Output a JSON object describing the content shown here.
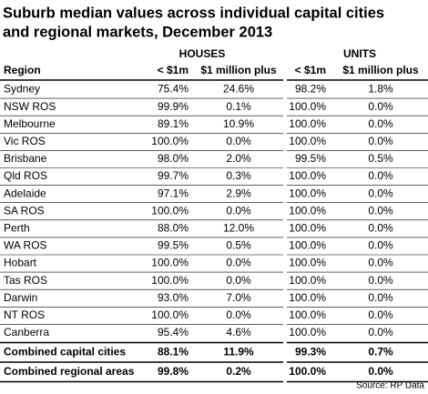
{
  "title": [
    "Suburb median values across individual capital cities",
    "and regional markets, December 2013"
  ],
  "table": {
    "groups": [
      "HOUSES",
      "UNITS"
    ],
    "columns": [
      "Region",
      "< $1m",
      "$1 million plus",
      "< $1m",
      "$1 million plus"
    ],
    "rows": [
      [
        "Sydney",
        "75.4%",
        "24.6%",
        "98.2%",
        "1.8%"
      ],
      [
        "NSW ROS",
        "99.9%",
        "0.1%",
        "100.0%",
        "0.0%"
      ],
      [
        "Melbourne",
        "89.1%",
        "10.9%",
        "100.0%",
        "0.0%"
      ],
      [
        "Vic ROS",
        "100.0%",
        "0.0%",
        "100.0%",
        "0.0%"
      ],
      [
        "Brisbane",
        "98.0%",
        "2.0%",
        "99.5%",
        "0.5%"
      ],
      [
        "Qld ROS",
        "99.7%",
        "0.3%",
        "100.0%",
        "0.0%"
      ],
      [
        "Adelaide",
        "97.1%",
        "2.9%",
        "100.0%",
        "0.0%"
      ],
      [
        "SA ROS",
        "100.0%",
        "0.0%",
        "100.0%",
        "0.0%"
      ],
      [
        "Perth",
        "88.0%",
        "12.0%",
        "100.0%",
        "0.0%"
      ],
      [
        "WA ROS",
        "99.5%",
        "0.5%",
        "100.0%",
        "0.0%"
      ],
      [
        "Hobart",
        "100.0%",
        "0.0%",
        "100.0%",
        "0.0%"
      ],
      [
        "Tas ROS",
        "100.0%",
        "0.0%",
        "100.0%",
        "0.0%"
      ],
      [
        "Darwin",
        "93.0%",
        "7.0%",
        "100.0%",
        "0.0%"
      ],
      [
        "NT ROS",
        "100.0%",
        "0.0%",
        "100.0%",
        "0.0%"
      ],
      [
        "Canberra",
        "95.4%",
        "4.6%",
        "100.0%",
        "0.0%"
      ]
    ],
    "totals": [
      [
        "Combined capital cities",
        "88.1%",
        "11.9%",
        "99.3%",
        "0.7%"
      ],
      [
        "Combined regional areas",
        "99.8%",
        "0.2%",
        "100.0%",
        "0.0%"
      ]
    ]
  },
  "source": "Source: RP Data"
}
